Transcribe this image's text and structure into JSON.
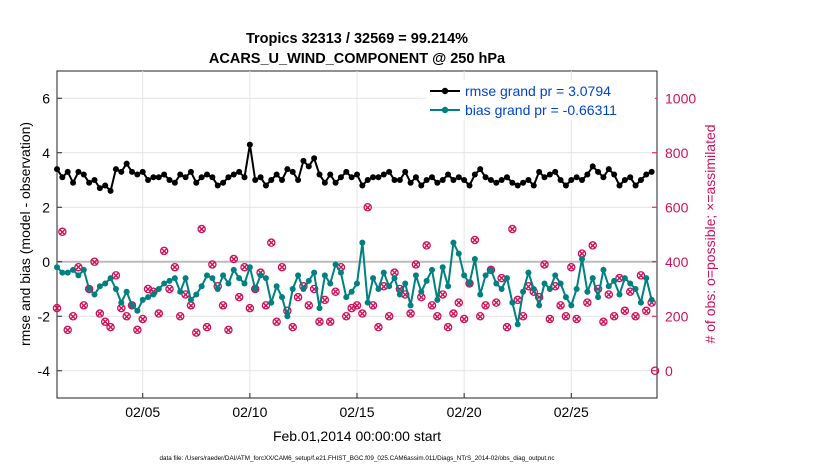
{
  "chart_data": {
    "type": "line",
    "title": "Tropics 32313 / 32569 = 99.214%",
    "subtitle": "ACARS_U_WIND_COMPONENT @ 250 hPa",
    "xlabel": "Feb.01,2014 00:00:00 start",
    "ylabel": "rmse and bias (model - observation)",
    "y2label": "# of obs: o=possible; ×=assimilated",
    "footer": "data file: /Users/raeder/DAI/ATM_forcXX/CAM6_setup/f.e21.FHIST_BGC.f09_025.CAM6assim.011/Diags_NTrS_2014-02/obs_diag_output.nc",
    "x_ticks": [
      {
        "day": 5,
        "label": "02/05"
      },
      {
        "day": 10,
        "label": "02/10"
      },
      {
        "day": 15,
        "label": "02/15"
      },
      {
        "day": 20,
        "label": "02/20"
      },
      {
        "day": 25,
        "label": "02/25"
      }
    ],
    "xlim": [
      1,
      29
    ],
    "ylim": [
      -5,
      7
    ],
    "y_ticks": [
      -4,
      -2,
      0,
      2,
      4,
      6
    ],
    "y2lim": [
      -100,
      1100
    ],
    "y2_ticks": [
      0,
      200,
      400,
      600,
      800,
      1000
    ],
    "legend_position": "top-right",
    "series": [
      {
        "name": "rmse grand pr = 3.0794",
        "axis": "left",
        "color": "#000000",
        "marker": "circle",
        "x_start": 1.0,
        "x_step": 0.25,
        "values": [
          3.4,
          3.1,
          3.3,
          2.9,
          3.3,
          3.2,
          2.9,
          3.0,
          2.7,
          2.8,
          2.6,
          3.4,
          3.3,
          3.6,
          3.3,
          3.2,
          3.3,
          3.0,
          3.1,
          3.1,
          3.2,
          3.0,
          2.9,
          3.2,
          3.1,
          3.3,
          2.9,
          3.1,
          3.2,
          3.0,
          2.8,
          2.9,
          3.1,
          3.2,
          3.3,
          3.1,
          2.9,
          3.0,
          3.1,
          2.8,
          3.0,
          3.2,
          3.0,
          3.4,
          3.3,
          3.0,
          3.7,
          3.5,
          3.8,
          3.2,
          2.9,
          3.2,
          2.9,
          3.1,
          3.3,
          3.1,
          3.2,
          2.8,
          3.0,
          3.1,
          3.1,
          3.2,
          3.3,
          3.0,
          3.0,
          3.3,
          2.9,
          3.1,
          2.8,
          3.0,
          3.1,
          2.9,
          3.0,
          3.2,
          3.0,
          3.1,
          3.0,
          2.8,
          3.2,
          3.4,
          3.1,
          3.0,
          2.9,
          3.0,
          3.1,
          2.9,
          2.8,
          2.9,
          3.0,
          2.8,
          3.3,
          3.1,
          3.2,
          3.3,
          3.0,
          2.8,
          3.0,
          3.1,
          3.0,
          3.2,
          3.5,
          3.3,
          3.1,
          3.4,
          3.2,
          2.8,
          3.0,
          3.1,
          2.8,
          3.0,
          3.2,
          3.3
        ],
        "value_overrides": [
          {
            "x": 10.0,
            "value": 4.3
          },
          {
            "x": 8.25,
            "value": 3.1
          }
        ],
        "bias_values_note": "see bias series"
      },
      {
        "name": "bias grand pr = -0.66311",
        "axis": "left",
        "color": "#008080",
        "marker": "circle",
        "x_start": 1.0,
        "x_step": 0.25,
        "values": [
          -0.2,
          -0.4,
          -0.4,
          -0.3,
          -0.5,
          -0.3,
          -1.0,
          -1.2,
          -0.9,
          -0.8,
          -0.6,
          -1.0,
          -1.5,
          -1.1,
          -1.6,
          -1.8,
          -1.4,
          -1.3,
          -1.2,
          -1.0,
          -0.8,
          -0.7,
          -0.6,
          -1.1,
          -0.6,
          -1.4,
          -1.2,
          -0.9,
          -0.5,
          -0.6,
          -1.0,
          -0.5,
          -0.8,
          -0.3,
          -0.6,
          -0.8,
          -0.2,
          -1.0,
          -0.5,
          -0.6,
          -1.5,
          -0.9,
          -1.3,
          -2.0,
          -1.0,
          -0.5,
          -1.0,
          -0.7,
          -0.4,
          -1.7,
          -0.5,
          -0.8,
          -0.1,
          -0.4,
          -1.3,
          -1.1,
          -0.8,
          -0.3,
          -1.5,
          -0.6,
          -1.0,
          -0.4,
          -0.9,
          -0.6,
          -1.2,
          -0.8,
          -1.6,
          -0.5,
          -1.1,
          -0.7,
          -0.3,
          -1.4,
          -0.2,
          -0.9,
          0.7,
          0.3,
          -0.5,
          -0.8,
          -0.4,
          -1.2,
          -0.5,
          -0.3,
          -0.8,
          -1.0,
          -0.6,
          -1.5,
          -0.9,
          -1.1,
          -0.4,
          -1.0,
          -1.6,
          -0.8,
          -1.0,
          -0.5,
          -0.8,
          -1.3,
          -1.6,
          -1.0,
          0.1,
          -1.1,
          -0.6,
          -1.3,
          -0.3,
          -0.9,
          -0.7,
          -1.2,
          -0.6,
          -0.8,
          -1.0,
          -1.5,
          -0.6,
          -1.4
        ],
        "value_overrides": [
          {
            "x": 15.25,
            "value": 0.7
          },
          {
            "x": 20.5,
            "value": 0.1
          },
          {
            "x": 22.5,
            "value": -2.3
          }
        ]
      },
      {
        "name": "obs possible",
        "axis": "right",
        "color": "#d0105a",
        "marker": "o",
        "x_start": 1.0,
        "x_step": 0.25,
        "values": [
          230,
          510,
          150,
          200,
          380,
          240,
          300,
          400,
          210,
          180,
          160,
          350,
          230,
          200,
          240,
          150,
          190,
          300,
          290,
          210,
          440,
          300,
          380,
          200,
          280,
          240,
          140,
          520,
          160,
          390,
          310,
          240,
          150,
          410,
          270,
          380,
          230,
          300,
          360,
          240,
          470,
          180,
          380,
          220,
          160,
          270,
          310,
          240,
          300,
          180,
          260,
          180,
          290,
          380,
          200,
          230,
          240,
          210,
          600,
          240,
          160,
          310,
          200,
          360,
          300,
          280,
          210,
          390,
          270,
          460,
          240,
          200,
          280,
          160,
          210,
          250,
          190,
          320,
          480,
          200,
          240,
          370,
          250,
          340,
          160,
          520,
          260,
          200,
          310,
          290,
          270,
          390,
          190,
          310,
          240,
          200,
          380,
          190,
          430,
          250,
          460,
          300,
          180,
          280,
          200,
          340,
          220,
          290,
          200,
          350,
          220,
          250
        ],
        "scattered": true
      }
    ],
    "assimilated_marker": "×"
  }
}
